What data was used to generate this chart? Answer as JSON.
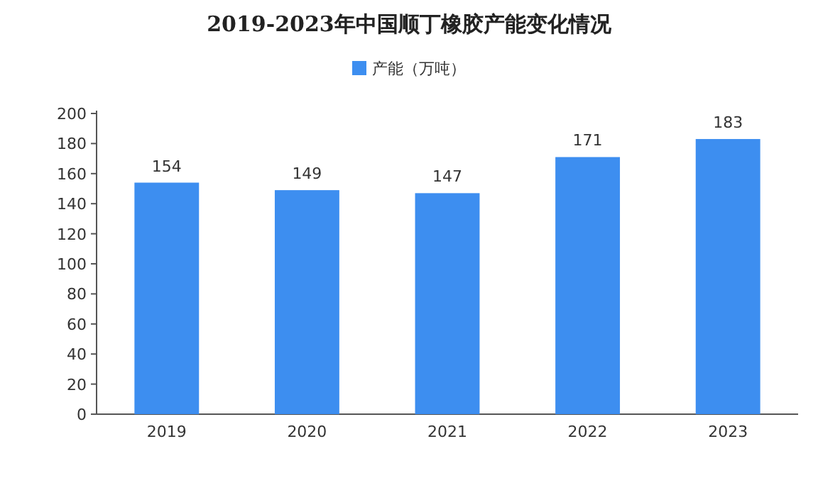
{
  "chart_data": {
    "type": "bar",
    "title": "2019-2023年中国顺丁橡胶产能变化情况",
    "categories": [
      "2019",
      "2020",
      "2021",
      "2022",
      "2023"
    ],
    "series": [
      {
        "name": "产能（万吨）",
        "color": "#3d8ef0",
        "values": [
          154,
          149,
          147,
          171,
          183
        ]
      }
    ],
    "ylim": [
      0,
      200
    ],
    "yticks": [
      0,
      20,
      40,
      60,
      80,
      100,
      120,
      140,
      160,
      180,
      200
    ],
    "data_labels": true,
    "legend": "top"
  }
}
